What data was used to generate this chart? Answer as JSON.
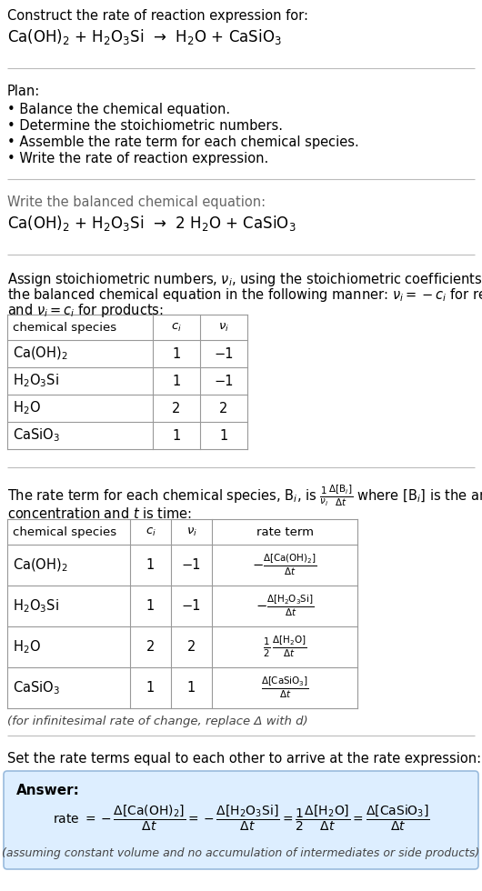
{
  "title_line1": "Construct the rate of reaction expression for:",
  "title_line2": "Ca(OH)$_2$ + H$_2$O$_3$Si  →  H$_2$O + CaSiO$_3$",
  "plan_header": "Plan:",
  "plan_items": [
    "• Balance the chemical equation.",
    "• Determine the stoichiometric numbers.",
    "• Assemble the rate term for each chemical species.",
    "• Write the rate of reaction expression."
  ],
  "balanced_header": "Write the balanced chemical equation:",
  "balanced_eq": "Ca(OH)$_2$ + H$_2$O$_3$Si  →  2 H$_2$O + CaSiO$_3$",
  "stoich_intro1": "Assign stoichiometric numbers, $\\nu_i$, using the stoichiometric coefficients, $c_i$, from",
  "stoich_intro2": "the balanced chemical equation in the following manner: $\\nu_i = -c_i$ for reactants",
  "stoich_intro3": "and $\\nu_i = c_i$ for products:",
  "table1_headers": [
    "chemical species",
    "$c_i$",
    "$\\nu_i$"
  ],
  "table1_rows": [
    [
      "Ca(OH)$_2$",
      "1",
      "−1"
    ],
    [
      "H$_2$O$_3$Si",
      "1",
      "−1"
    ],
    [
      "H$_2$O",
      "2",
      "2"
    ],
    [
      "CaSiO$_3$",
      "1",
      "1"
    ]
  ],
  "rate_intro1": "The rate term for each chemical species, B$_i$, is $\\frac{1}{\\nu_i}\\frac{\\Delta[\\mathrm{B}_i]}{\\Delta t}$ where [B$_i$] is the amount",
  "rate_intro2": "concentration and $t$ is time:",
  "table2_headers": [
    "chemical species",
    "$c_i$",
    "$\\nu_i$",
    "rate term"
  ],
  "table2_rows": [
    [
      "Ca(OH)$_2$",
      "1",
      "−1",
      "$-\\frac{\\Delta[\\mathrm{Ca(OH)_2}]}{\\Delta t}$"
    ],
    [
      "H$_2$O$_3$Si",
      "1",
      "−1",
      "$-\\frac{\\Delta[\\mathrm{H_2O_3Si}]}{\\Delta t}$"
    ],
    [
      "H$_2$O",
      "2",
      "2",
      "$\\frac{1}{2}\\,\\frac{\\Delta[\\mathrm{H_2O}]}{\\Delta t}$"
    ],
    [
      "CaSiO$_3$",
      "1",
      "1",
      "$\\frac{\\Delta[\\mathrm{CaSiO_3}]}{\\Delta t}$"
    ]
  ],
  "infinitesimal_note": "(for infinitesimal rate of change, replace Δ with d)",
  "set_equal_text": "Set the rate terms equal to each other to arrive at the rate expression:",
  "answer_bg_color": "#ddeeff",
  "answer_border_color": "#99bbdd",
  "answer_label": "Answer:",
  "answer_note": "(assuming constant volume and no accumulation of intermediates or side products)",
  "bg_color": "#ffffff",
  "text_color": "#000000",
  "gray_text": "#666666",
  "table_line_color": "#999999",
  "sep_color": "#bbbbbb",
  "font_main": 10.5,
  "font_eq": 12.0,
  "font_small": 9.5
}
